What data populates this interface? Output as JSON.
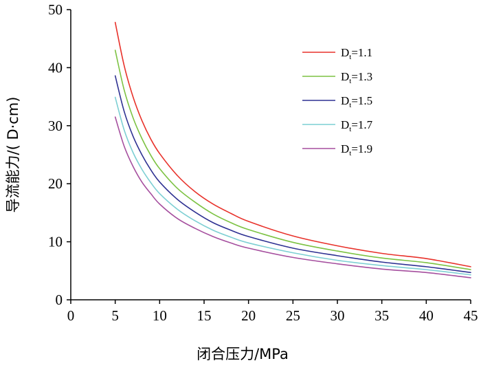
{
  "chart_data": {
    "type": "line",
    "xlabel": "闭合压力/MPa",
    "ylabel": "导流能力/( D·cm)",
    "xlim": [
      0,
      45
    ],
    "ylim": [
      0,
      50
    ],
    "xticks": [
      "0",
      "5",
      "10",
      "15",
      "20",
      "25",
      "30",
      "35",
      "40",
      "45"
    ],
    "yticks": [
      "0",
      "10",
      "20",
      "30",
      "40",
      "50"
    ],
    "grid": false,
    "legend_position": "top-right",
    "x": [
      5,
      6,
      7,
      8,
      9,
      10,
      12,
      14,
      16,
      18,
      20,
      25,
      30,
      35,
      40,
      45
    ],
    "series": [
      {
        "name": "Dt=1.1",
        "label_main": "D",
        "label_sub": "t",
        "label_rest": "=1.1",
        "color": "#e8312a",
        "values": [
          47.8,
          40.4,
          35.0,
          30.9,
          27.7,
          25.2,
          21.4,
          18.6,
          16.5,
          14.9,
          13.5,
          11.0,
          9.3,
          8.0,
          7.1,
          5.7
        ]
      },
      {
        "name": "Dt=1.3",
        "label_main": "D",
        "label_sub": "t",
        "label_rest": "=1.3",
        "color": "#7cc242",
        "values": [
          43.0,
          36.2,
          31.4,
          27.8,
          24.9,
          22.6,
          19.2,
          16.8,
          14.8,
          13.3,
          12.1,
          9.9,
          8.4,
          7.2,
          6.4,
          5.2
        ]
      },
      {
        "name": "Dt=1.5",
        "label_main": "D",
        "label_sub": "t",
        "label_rest": "=1.5",
        "color": "#2e3192",
        "values": [
          38.6,
          32.5,
          28.2,
          25.0,
          22.4,
          20.3,
          17.3,
          15.1,
          13.3,
          12.0,
          10.9,
          8.9,
          7.6,
          6.5,
          5.7,
          4.7
        ]
      },
      {
        "name": "Dt=1.7",
        "label_main": "D",
        "label_sub": "t",
        "label_rest": "=1.7",
        "color": "#7ccfd3",
        "values": [
          34.9,
          29.3,
          25.4,
          22.5,
          20.2,
          18.3,
          15.6,
          13.6,
          12.0,
          10.8,
          9.8,
          8.1,
          6.8,
          5.9,
          5.2,
          4.3
        ]
      },
      {
        "name": "Dt=1.9",
        "label_main": "D",
        "label_sub": "t",
        "label_rest": "=1.9",
        "color": "#a54e9e",
        "values": [
          31.5,
          26.5,
          23.0,
          20.3,
          18.3,
          16.5,
          14.0,
          12.3,
          10.9,
          9.8,
          8.9,
          7.3,
          6.2,
          5.3,
          4.7,
          3.8
        ]
      }
    ]
  }
}
